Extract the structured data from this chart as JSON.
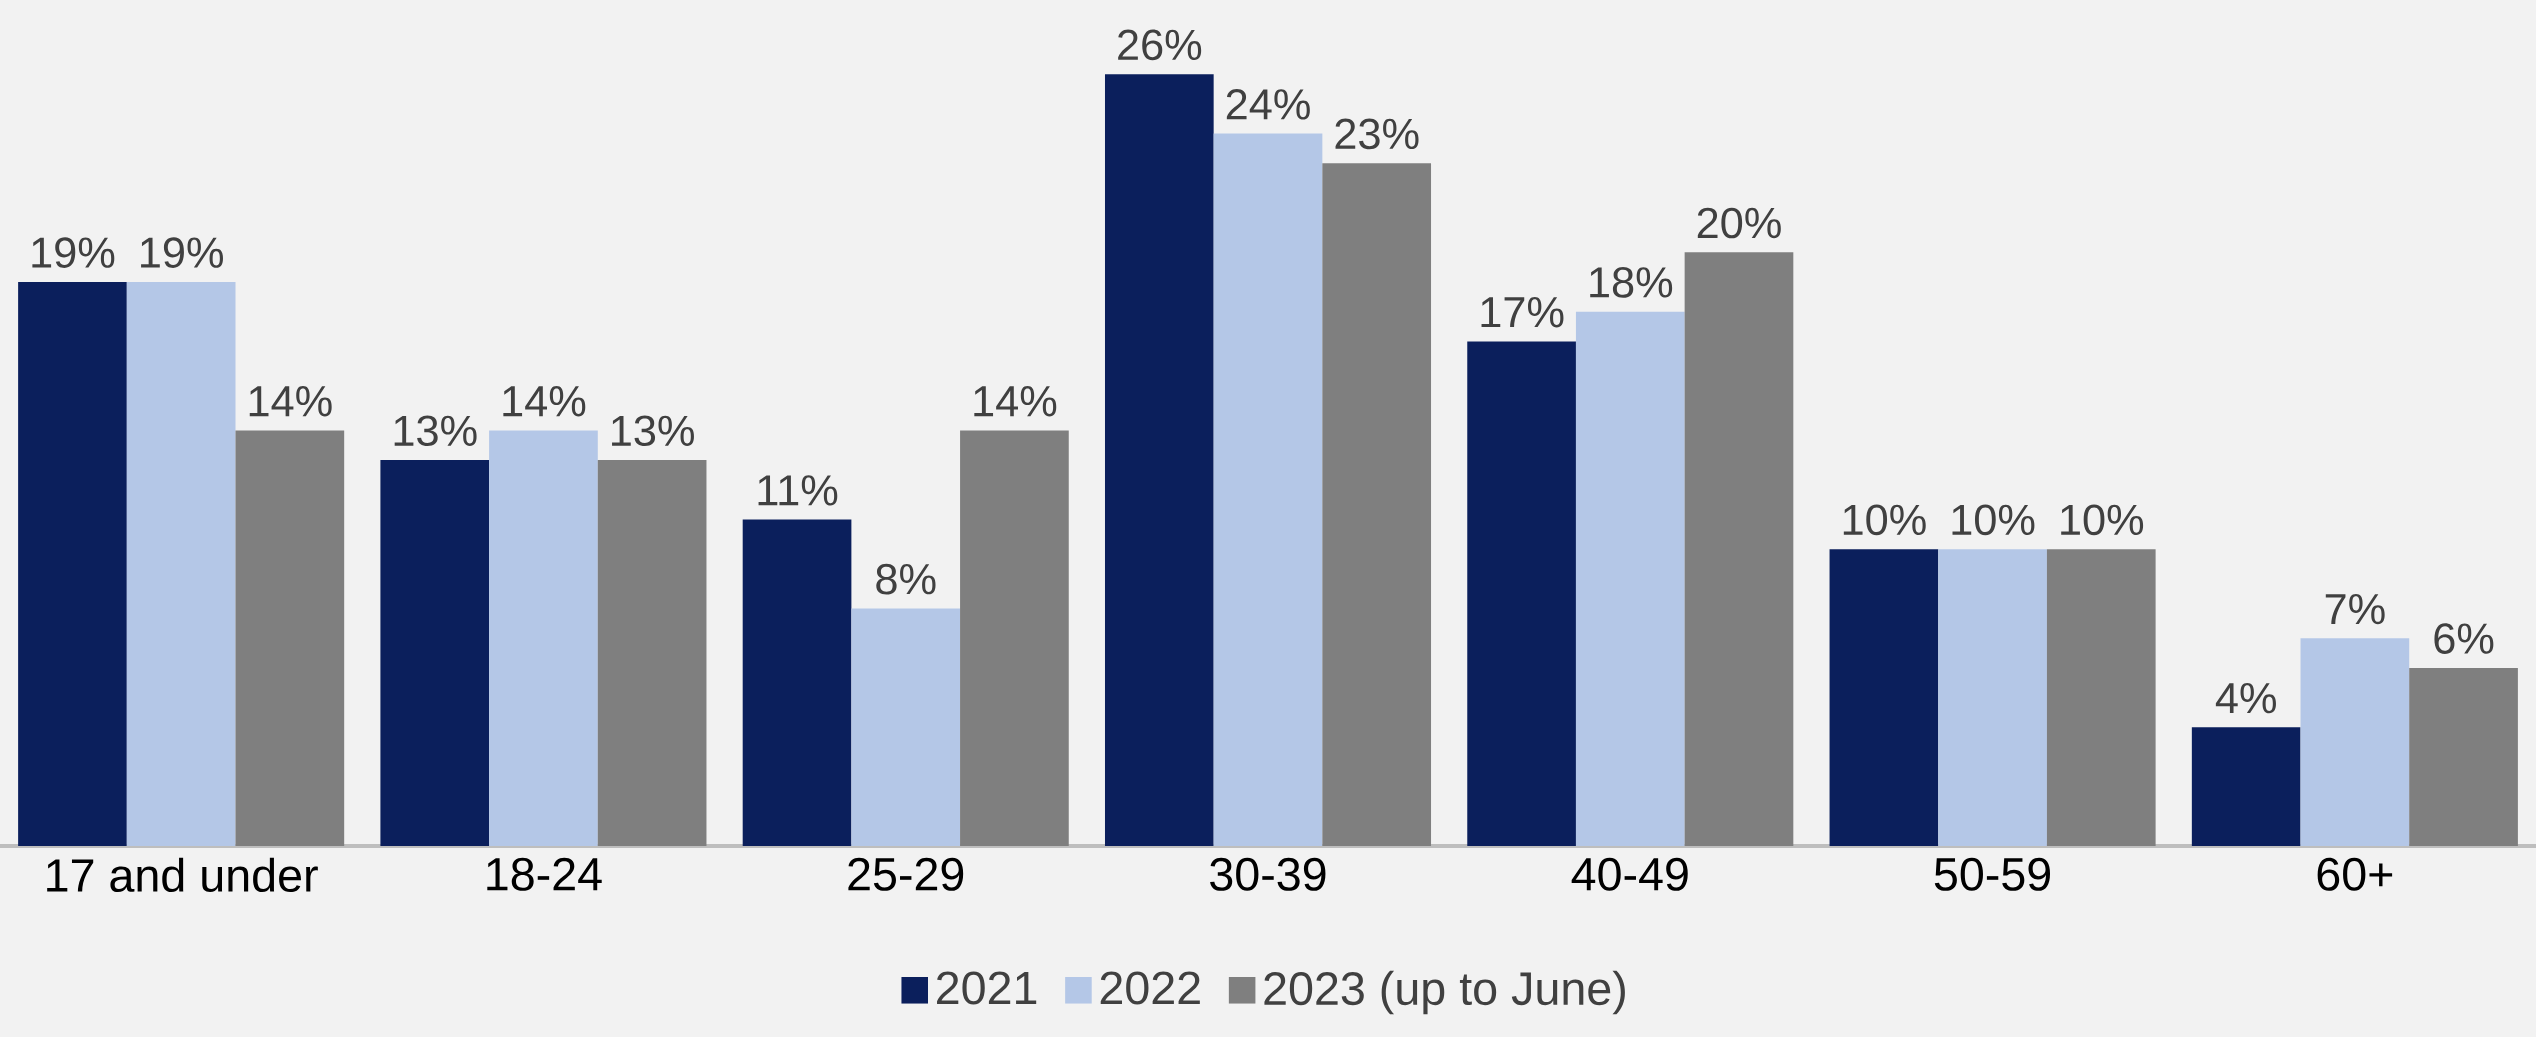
{
  "chart_data": {
    "type": "bar",
    "categories": [
      "17 and under",
      "18-24",
      "25-29",
      "30-39",
      "40-49",
      "50-59",
      "60+"
    ],
    "series": [
      {
        "name": "2021",
        "color": "#0b1f5c",
        "values": [
          19,
          13,
          11,
          26,
          17,
          10,
          4
        ],
        "value_labels": [
          "19%",
          "13%",
          "11%",
          "26%",
          "17%",
          "10%",
          "4%"
        ]
      },
      {
        "name": "2022",
        "color": "#b4c7e7",
        "values": [
          19,
          14,
          8,
          24,
          18,
          10,
          7
        ],
        "value_labels": [
          "19%",
          "14%",
          "8%",
          "24%",
          "18%",
          "10%",
          "7%"
        ]
      },
      {
        "name": "2023 (up to June)",
        "color": "#7f7f7f",
        "values": [
          14,
          13,
          14,
          23,
          20,
          10,
          6
        ],
        "value_labels": [
          "14%",
          "13%",
          "14%",
          "23%",
          "20%",
          "10%",
          "6%"
        ]
      }
    ],
    "ylim": [
      0,
      28.5
    ],
    "legend": "bottom"
  }
}
